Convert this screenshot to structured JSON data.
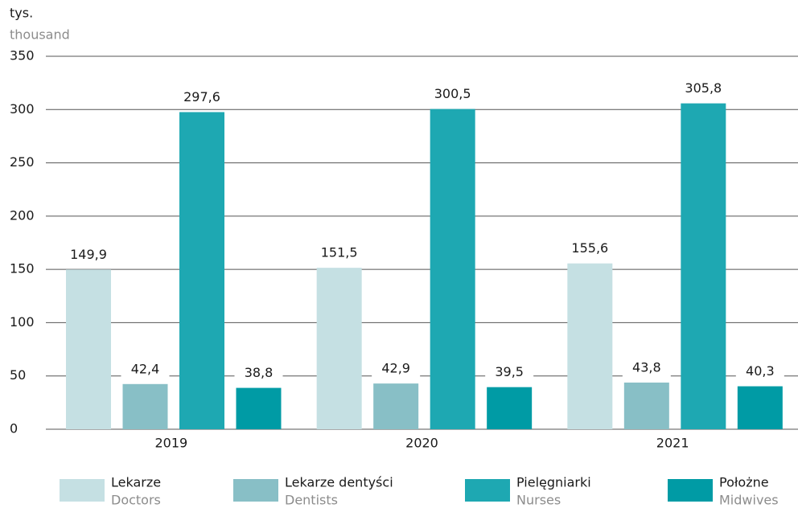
{
  "chart_data": {
    "type": "bar",
    "y_label": "tys.",
    "y_label_en": "thousand",
    "categories": [
      "2019",
      "2020",
      "2021"
    ],
    "series": [
      {
        "name": "Lekarze",
        "name_en": "Doctors",
        "color": "#c5e0e3",
        "values": [
          149.9,
          151.5,
          155.6
        ],
        "value_labels": [
          "149,9",
          "151,5",
          "155,6"
        ]
      },
      {
        "name": "Lekarze dentyści",
        "name_en": "Dentists",
        "color": "#88bfc6",
        "values": [
          42.4,
          42.9,
          43.8
        ],
        "value_labels": [
          "42,4",
          "42,9",
          "43,8"
        ]
      },
      {
        "name": "Pielęgniarki",
        "name_en": "Nurses",
        "color": "#1ea8b2",
        "values": [
          297.6,
          300.5,
          305.8
        ],
        "value_labels": [
          "297,6",
          "300,5",
          "305,8"
        ]
      },
      {
        "name": "Położne",
        "name_en": "Midwives",
        "color": "#009ba5",
        "values": [
          38.8,
          39.5,
          40.3
        ],
        "value_labels": [
          "38,8",
          "39,5",
          "40,3"
        ]
      }
    ],
    "ylim": [
      0,
      350
    ],
    "yticks": [
      0,
      50,
      100,
      150,
      200,
      250,
      300,
      350
    ],
    "grid": true
  }
}
